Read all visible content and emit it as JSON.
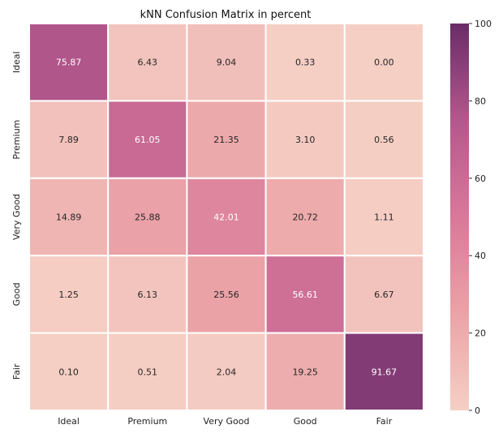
{
  "chart_data": {
    "type": "heatmap",
    "title": "kNN Confusion Matrix in percent",
    "xlabel": "",
    "ylabel": "",
    "x_categories": [
      "Ideal",
      "Premium",
      "Very Good",
      "Good",
      "Fair"
    ],
    "y_categories": [
      "Ideal",
      "Premium",
      "Very Good",
      "Good",
      "Fair"
    ],
    "values": [
      [
        75.87,
        6.43,
        9.04,
        0.33,
        0.0
      ],
      [
        7.89,
        61.05,
        21.35,
        3.1,
        0.56
      ],
      [
        14.89,
        25.88,
        42.01,
        20.72,
        1.11
      ],
      [
        1.25,
        6.13,
        25.56,
        56.61,
        6.67
      ],
      [
        0.1,
        0.51,
        2.04,
        19.25,
        91.67
      ]
    ],
    "value_labels": [
      [
        "75.87",
        "6.43",
        "9.04",
        "0.33",
        "0.00"
      ],
      [
        "7.89",
        "61.05",
        "21.35",
        "3.10",
        "0.56"
      ],
      [
        "14.89",
        "25.88",
        "42.01",
        "20.72",
        "1.11"
      ],
      [
        "1.25",
        "6.13",
        "25.56",
        "56.61",
        "6.67"
      ],
      [
        "0.10",
        "0.51",
        "2.04",
        "19.25",
        "91.67"
      ]
    ],
    "colorbar": {
      "range": [
        0,
        100
      ],
      "ticks": [
        0,
        20,
        40,
        60,
        80,
        100
      ],
      "colors": [
        "#f5cfc4",
        "#eba3a7",
        "#d8789a",
        "#b3588c",
        "#6a2c68"
      ]
    },
    "grid": false,
    "legend": "right"
  }
}
